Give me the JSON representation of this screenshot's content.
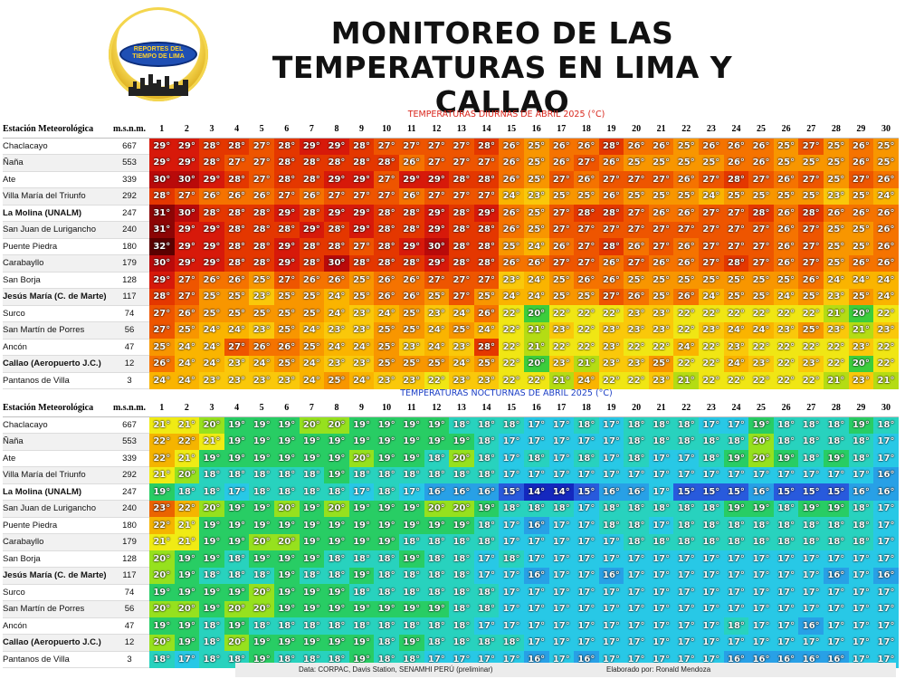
{
  "logo": {
    "text": "REPORTES DEL TIEMPO DE LIMA"
  },
  "title": "MONITOREO DE LAS TEMPERATURAS EN LIMA Y CALLAO",
  "table_headers": {
    "station": "Estación Meteorológica",
    "altitude": "m.s.n.m."
  },
  "days": [
    1,
    2,
    3,
    4,
    5,
    6,
    7,
    8,
    9,
    10,
    11,
    12,
    13,
    14,
    15,
    16,
    17,
    18,
    19,
    20,
    21,
    22,
    23,
    24,
    25,
    26,
    27,
    28,
    29,
    30
  ],
  "stations": [
    {
      "name": "Chaclacayo",
      "alt": 667,
      "bold": false
    },
    {
      "name": "Ñaña",
      "alt": 553,
      "bold": false
    },
    {
      "name": "Ate",
      "alt": 339,
      "bold": false
    },
    {
      "name": "Villa María del Triunfo",
      "alt": 292,
      "bold": false
    },
    {
      "name": "La Molina (UNALM)",
      "alt": 247,
      "bold": true
    },
    {
      "name": "San Juan de Lurigancho",
      "alt": 240,
      "bold": false
    },
    {
      "name": "Puente Piedra",
      "alt": 180,
      "bold": false
    },
    {
      "name": "Carabayllo",
      "alt": 179,
      "bold": false
    },
    {
      "name": "San Borja",
      "alt": 128,
      "bold": false
    },
    {
      "name": "Jesús María (C. de Marte)",
      "alt": 117,
      "bold": true
    },
    {
      "name": "Surco",
      "alt": 74,
      "bold": false
    },
    {
      "name": "San Martín de Porres",
      "alt": 56,
      "bold": false
    },
    {
      "name": "Ancón",
      "alt": 47,
      "bold": false
    },
    {
      "name": "Callao (Aeropuerto J.C.)",
      "alt": 12,
      "bold": true
    },
    {
      "name": "Pantanos de Villa",
      "alt": 3,
      "bold": false
    }
  ],
  "chart_data": [
    {
      "type": "heatmap",
      "title": "TEMPERATURAS DIURNAS DE ABRIL 2025 (°C)",
      "unit": "°",
      "values": [
        [
          29,
          29,
          28,
          28,
          27,
          28,
          29,
          29,
          28,
          27,
          27,
          27,
          27,
          28,
          26,
          25,
          26,
          26,
          28,
          26,
          26,
          25,
          26,
          26,
          26,
          25,
          27,
          25,
          26,
          25
        ],
        [
          29,
          29,
          28,
          27,
          27,
          28,
          28,
          28,
          28,
          28,
          26,
          27,
          27,
          27,
          26,
          25,
          26,
          27,
          26,
          25,
          25,
          25,
          25,
          26,
          26,
          25,
          25,
          25,
          26,
          25
        ],
        [
          30,
          30,
          29,
          28,
          27,
          28,
          28,
          29,
          29,
          27,
          29,
          29,
          28,
          28,
          26,
          25,
          27,
          26,
          27,
          27,
          27,
          26,
          27,
          28,
          27,
          26,
          27,
          25,
          27,
          26
        ],
        [
          28,
          27,
          26,
          26,
          26,
          27,
          26,
          27,
          27,
          27,
          26,
          27,
          27,
          27,
          24,
          23,
          25,
          25,
          26,
          25,
          25,
          25,
          24,
          25,
          25,
          25,
          25,
          23,
          25,
          24
        ],
        [
          31,
          30,
          28,
          28,
          28,
          29,
          28,
          29,
          29,
          28,
          28,
          29,
          28,
          29,
          26,
          25,
          27,
          28,
          28,
          27,
          26,
          26,
          27,
          27,
          28,
          26,
          28,
          26,
          26,
          26
        ],
        [
          31,
          29,
          29,
          28,
          28,
          28,
          29,
          28,
          29,
          28,
          28,
          29,
          28,
          28,
          26,
          25,
          27,
          27,
          27,
          27,
          27,
          27,
          27,
          27,
          27,
          26,
          27,
          25,
          25,
          26
        ],
        [
          32,
          29,
          29,
          28,
          28,
          29,
          28,
          28,
          27,
          28,
          29,
          30,
          28,
          28,
          25,
          24,
          26,
          27,
          28,
          26,
          27,
          26,
          27,
          27,
          27,
          26,
          27,
          25,
          25,
          26
        ],
        [
          30,
          29,
          29,
          28,
          28,
          29,
          28,
          30,
          28,
          28,
          28,
          29,
          28,
          28,
          26,
          26,
          27,
          27,
          26,
          27,
          26,
          26,
          27,
          28,
          27,
          26,
          27,
          25,
          26,
          26
        ],
        [
          29,
          27,
          26,
          26,
          25,
          27,
          26,
          26,
          25,
          26,
          26,
          27,
          27,
          27,
          23,
          24,
          25,
          26,
          26,
          25,
          25,
          25,
          25,
          25,
          25,
          25,
          26,
          24,
          24,
          24
        ],
        [
          28,
          27,
          25,
          25,
          23,
          25,
          25,
          24,
          25,
          26,
          26,
          25,
          27,
          25,
          24,
          24,
          25,
          25,
          27,
          26,
          25,
          26,
          24,
          25,
          25,
          24,
          25,
          23,
          25,
          24
        ],
        [
          27,
          26,
          25,
          25,
          25,
          25,
          25,
          24,
          23,
          24,
          25,
          23,
          24,
          26,
          22,
          20,
          22,
          22,
          22,
          23,
          23,
          22,
          22,
          22,
          22,
          22,
          22,
          21,
          20,
          22
        ],
        [
          27,
          25,
          24,
          24,
          23,
          25,
          24,
          23,
          23,
          25,
          25,
          24,
          25,
          24,
          22,
          21,
          23,
          22,
          23,
          23,
          23,
          22,
          23,
          24,
          24,
          23,
          25,
          23,
          21,
          23
        ],
        [
          25,
          24,
          24,
          27,
          26,
          26,
          25,
          24,
          24,
          25,
          23,
          24,
          23,
          28,
          22,
          21,
          22,
          22,
          23,
          22,
          22,
          24,
          22,
          23,
          22,
          22,
          22,
          22,
          23,
          22
        ],
        [
          26,
          24,
          24,
          23,
          24,
          25,
          24,
          23,
          23,
          25,
          25,
          25,
          24,
          25,
          22,
          20,
          23,
          21,
          23,
          23,
          25,
          22,
          22,
          24,
          23,
          22,
          23,
          22,
          20,
          22
        ],
        [
          24,
          24,
          23,
          23,
          23,
          23,
          24,
          25,
          24,
          23,
          23,
          22,
          23,
          23,
          22,
          22,
          21,
          24,
          22,
          22,
          23,
          21,
          22,
          22,
          22,
          22,
          22,
          21,
          23,
          21
        ]
      ]
    },
    {
      "type": "heatmap",
      "title": "TEMPERATURAS NOCTURNAS DE ABRIL 2025 (°C)",
      "unit": "°",
      "values": [
        [
          21,
          21,
          20,
          19,
          19,
          19,
          20,
          20,
          19,
          19,
          19,
          19,
          18,
          18,
          18,
          17,
          17,
          18,
          17,
          18,
          18,
          18,
          17,
          17,
          19,
          18,
          18,
          18,
          19,
          18
        ],
        [
          22,
          22,
          21,
          19,
          19,
          19,
          19,
          19,
          19,
          19,
          19,
          19,
          19,
          18,
          17,
          17,
          17,
          17,
          17,
          18,
          18,
          18,
          18,
          18,
          20,
          18,
          18,
          18,
          18,
          17
        ],
        [
          22,
          21,
          19,
          19,
          19,
          19,
          19,
          19,
          20,
          19,
          19,
          18,
          20,
          18,
          17,
          18,
          17,
          18,
          17,
          18,
          17,
          17,
          18,
          19,
          20,
          19,
          18,
          19,
          18,
          17
        ],
        [
          21,
          20,
          18,
          18,
          18,
          18,
          18,
          19,
          18,
          18,
          18,
          18,
          18,
          18,
          17,
          17,
          17,
          17,
          17,
          17,
          17,
          17,
          17,
          17,
          17,
          17,
          17,
          17,
          17,
          16
        ],
        [
          19,
          18,
          18,
          17,
          18,
          18,
          18,
          18,
          17,
          18,
          17,
          16,
          16,
          16,
          15,
          14,
          14,
          15,
          16,
          16,
          17,
          15,
          15,
          15,
          16,
          15,
          15,
          15,
          16,
          16
        ],
        [
          23,
          22,
          20,
          19,
          19,
          20,
          19,
          20,
          19,
          19,
          19,
          20,
          20,
          19,
          18,
          18,
          18,
          17,
          18,
          18,
          18,
          18,
          18,
          19,
          19,
          18,
          19,
          19,
          18,
          17
        ],
        [
          22,
          21,
          19,
          19,
          19,
          19,
          19,
          19,
          19,
          19,
          19,
          19,
          19,
          18,
          17,
          16,
          17,
          17,
          18,
          18,
          17,
          18,
          18,
          18,
          18,
          18,
          18,
          18,
          18,
          17
        ],
        [
          21,
          21,
          19,
          19,
          20,
          20,
          19,
          19,
          19,
          19,
          18,
          18,
          18,
          18,
          17,
          17,
          17,
          17,
          17,
          18,
          18,
          18,
          18,
          18,
          18,
          18,
          18,
          18,
          18,
          17
        ],
        [
          20,
          19,
          19,
          18,
          19,
          19,
          19,
          18,
          18,
          18,
          19,
          18,
          18,
          17,
          18,
          17,
          17,
          17,
          17,
          17,
          17,
          17,
          17,
          17,
          17,
          17,
          17,
          17,
          17,
          17
        ],
        [
          20,
          19,
          18,
          18,
          18,
          19,
          18,
          18,
          19,
          18,
          18,
          18,
          18,
          17,
          17,
          16,
          17,
          17,
          16,
          17,
          17,
          17,
          17,
          17,
          17,
          17,
          17,
          16,
          17,
          16
        ],
        [
          19,
          19,
          19,
          19,
          20,
          19,
          19,
          19,
          18,
          18,
          18,
          18,
          18,
          18,
          17,
          17,
          17,
          17,
          17,
          17,
          17,
          17,
          17,
          17,
          17,
          17,
          17,
          17,
          17,
          17
        ],
        [
          20,
          20,
          19,
          20,
          20,
          19,
          19,
          19,
          19,
          19,
          19,
          19,
          18,
          18,
          17,
          17,
          17,
          17,
          17,
          17,
          17,
          17,
          17,
          17,
          17,
          17,
          17,
          17,
          17,
          17
        ],
        [
          19,
          19,
          18,
          19,
          18,
          18,
          18,
          18,
          18,
          18,
          18,
          18,
          18,
          17,
          17,
          17,
          17,
          17,
          17,
          17,
          17,
          17,
          17,
          18,
          17,
          17,
          16,
          17,
          17,
          17
        ],
        [
          20,
          19,
          18,
          20,
          19,
          19,
          19,
          19,
          19,
          18,
          19,
          18,
          18,
          18,
          18,
          17,
          17,
          17,
          17,
          17,
          17,
          17,
          17,
          17,
          17,
          17,
          17,
          17,
          17,
          17
        ],
        [
          18,
          17,
          18,
          18,
          19,
          18,
          18,
          18,
          19,
          18,
          18,
          17,
          17,
          17,
          17,
          16,
          17,
          16,
          17,
          17,
          17,
          17,
          17,
          16,
          16,
          16,
          16,
          16,
          17,
          17
        ]
      ]
    }
  ],
  "footer": {
    "source": "Data: CORPAC, Davis Station, SENAMHI PERÚ (preliminar)",
    "credit": "Elaborado por: Ronald Mendoza"
  }
}
